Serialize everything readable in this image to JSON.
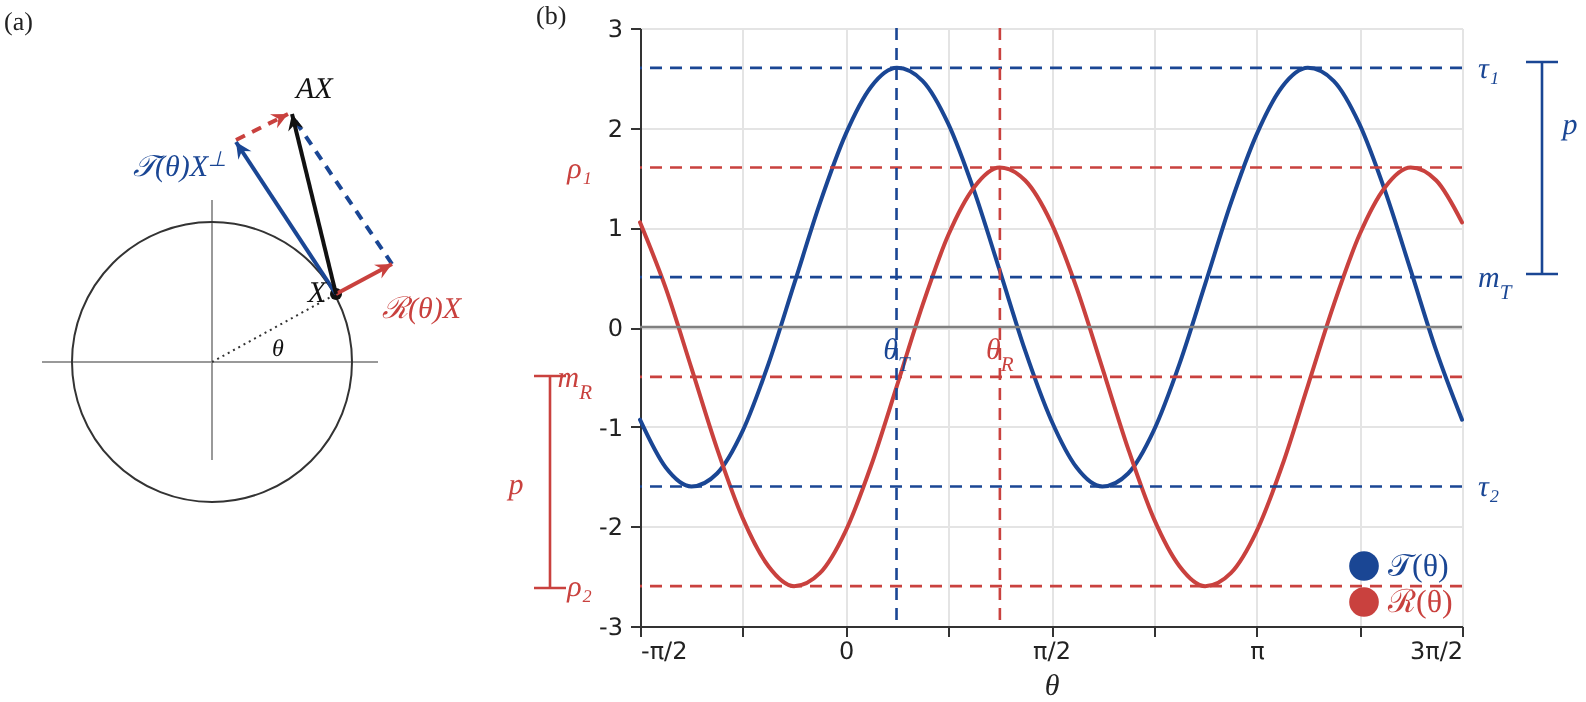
{
  "chart_data": [
    {
      "type": "other",
      "title": "(a)",
      "annotations": [
        "AX",
        "𝒯(θ)X$^{⊥}$",
        "X",
        "ℛ(θ)X",
        "θ"
      ]
    },
    {
      "type": "line",
      "title": "(b)",
      "xlabel": "θ",
      "x": [
        -1.5708,
        -1.374,
        -1.178,
        -0.982,
        -0.785,
        -0.589,
        -0.393,
        -0.196,
        0,
        0.196,
        0.393,
        0.589,
        0.785,
        0.982,
        1.178,
        1.374,
        1.571,
        1.767,
        1.963,
        2.16,
        2.356,
        2.553,
        2.749,
        2.945,
        3.142,
        3.338,
        3.534,
        3.731,
        3.927,
        4.123,
        4.32,
        4.516,
        4.7124
      ],
      "series": [
        {
          "name": "𝒯(θ)",
          "color": "#1a4694",
          "values": [
            -0.93,
            -1.41,
            -1.6,
            -1.47,
            -1.04,
            -0.37,
            0.43,
            1.24,
            1.93,
            2.41,
            2.6,
            2.47,
            2.04,
            1.37,
            0.57,
            -0.24,
            -0.93,
            -1.41,
            -1.6,
            -1.47,
            -1.04,
            -0.37,
            0.43,
            1.24,
            1.93,
            2.41,
            2.6,
            2.47,
            2.04,
            1.37,
            0.57,
            -0.24,
            -0.93
          ]
        },
        {
          "name": "ℛ(θ)",
          "color": "#c9413e",
          "values": [
            1.05,
            0.39,
            -0.41,
            -1.22,
            -1.92,
            -2.4,
            -2.6,
            -2.47,
            -2.05,
            -1.39,
            -0.59,
            0.22,
            0.92,
            1.4,
            1.6,
            1.47,
            1.05,
            0.39,
            -0.41,
            -1.22,
            -1.92,
            -2.4,
            -2.6,
            -2.47,
            -2.05,
            -1.39,
            -0.59,
            0.22,
            0.92,
            1.4,
            1.6,
            1.47,
            1.05
          ]
        }
      ],
      "xlim": [
        -1.5708,
        4.7124
      ],
      "xticks": [
        {
          "value": -1.5708,
          "label": "-π/2"
        },
        {
          "value": -0.7854,
          "label": null
        },
        {
          "value": 0,
          "label": "0"
        },
        {
          "value": 0.7854,
          "label": null
        },
        {
          "value": 1.5708,
          "label": "π/2"
        },
        {
          "value": 2.3562,
          "label": null
        },
        {
          "value": 3.1416,
          "label": "π"
        },
        {
          "value": 3.927,
          "label": null
        },
        {
          "value": 4.7124,
          "label": "3π/2"
        }
      ],
      "ylim": [
        -3,
        3
      ],
      "yticks": [
        -3,
        -2,
        -1,
        0,
        1,
        2,
        3
      ],
      "grid": true,
      "legend": "bottom right",
      "ref_lines": [
        {
          "axis": "y",
          "value": 0,
          "color": "#808080"
        },
        {
          "axis": "y",
          "value": 2.6,
          "label": "τ₁",
          "color": "#1a4694",
          "line_style": "dashed"
        },
        {
          "axis": "y",
          "value": 0.5,
          "label": "m$_{T}$",
          "color": "#1a4694",
          "line_style": "dashed"
        },
        {
          "axis": "y",
          "value": -1.6,
          "label": "τ₂",
          "color": "#1a4694",
          "line_style": "dashed"
        },
        {
          "axis": "y",
          "value": 1.6,
          "label": "ρ₁",
          "color": "#c9413e",
          "line_style": "dashed"
        },
        {
          "axis": "y",
          "value": -0.5,
          "label": "m$_{R}$",
          "color": "#c9413e",
          "line_style": "dashed"
        },
        {
          "axis": "y",
          "value": -2.6,
          "label": "ρ₂",
          "color": "#c9413e",
          "line_style": "dashed"
        },
        {
          "axis": "x",
          "value": 0.39,
          "label": "θ$_{T}$",
          "color": "#1a4694",
          "line_style": "dashed"
        },
        {
          "axis": "x",
          "value": 1.18,
          "label": "θ$_{R}$",
          "color": "#c9413e",
          "line_style": "dashed"
        }
      ],
      "annotations": [
        "p",
        "p"
      ]
    }
  ]
}
